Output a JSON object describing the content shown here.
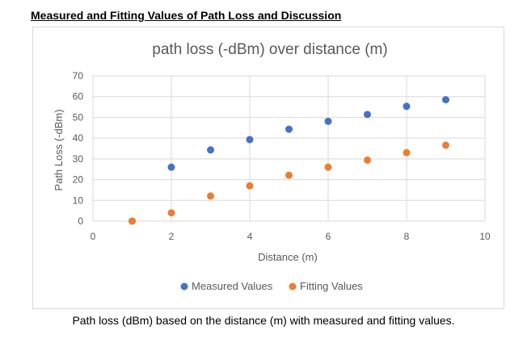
{
  "page": {
    "heading": "Measured and Fitting Values of Path Loss and Discussion",
    "caption": "Path loss (dBm) based on the distance (m) with measured and fitting values."
  },
  "colors": {
    "measured": "#4472c4",
    "fitting": "#ed7d31",
    "grid": "#d9d9d9",
    "text": "#595959"
  },
  "chart_data": {
    "type": "scatter",
    "title": "path loss (-dBm) over distance (m)",
    "xlabel": "Distance (m)",
    "ylabel": "Path Loss (-dBm)",
    "xlim": [
      0,
      10
    ],
    "ylim": [
      0,
      70
    ],
    "xticks": [
      0,
      2,
      4,
      6,
      8,
      10
    ],
    "yticks": [
      0,
      10,
      20,
      30,
      40,
      50,
      60,
      70
    ],
    "grid": true,
    "legend": "bottom",
    "series": [
      {
        "name": "Measured Values",
        "color": "#4472c4",
        "x": [
          1,
          2,
          3,
          4,
          5,
          6,
          7,
          8,
          9
        ],
        "y": [
          0,
          26,
          34.3,
          39.3,
          44.3,
          48.1,
          51.4,
          55.3,
          58.5
        ]
      },
      {
        "name": "Fitting Values",
        "color": "#ed7d31",
        "x": [
          1,
          2,
          3,
          4,
          5,
          6,
          7,
          8,
          9
        ],
        "y": [
          0,
          4,
          12.1,
          17,
          22.1,
          26,
          29.4,
          33,
          36.6
        ]
      }
    ]
  }
}
